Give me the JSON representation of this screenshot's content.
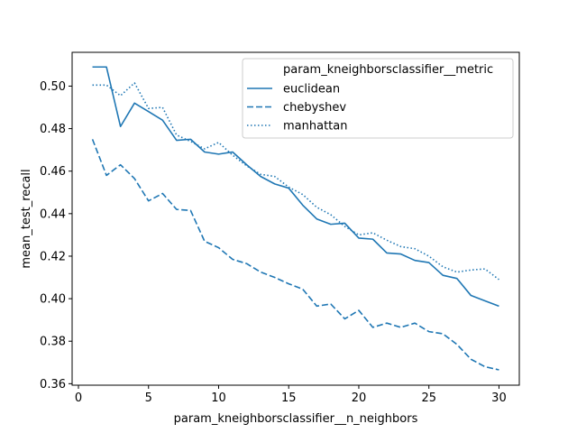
{
  "chart_data": {
    "type": "line",
    "title": "",
    "xlabel": "param_kneighborsclassifier__n_neighbors",
    "ylabel": "mean_test_recall",
    "xlim": [
      -0.45,
      31.45
    ],
    "ylim": [
      0.3593,
      0.5159
    ],
    "xticks": [
      0,
      5,
      10,
      15,
      20,
      25,
      30
    ],
    "yticks": [
      0.36,
      0.38,
      0.4,
      0.42,
      0.44,
      0.46,
      0.48,
      0.5
    ],
    "grid": false,
    "legend": {
      "title": "param_kneighborsclassifier__metric",
      "placement": "top-right"
    },
    "color": "#1f77b4",
    "x": [
      1,
      2,
      3,
      4,
      5,
      6,
      7,
      8,
      9,
      10,
      11,
      12,
      13,
      14,
      15,
      16,
      17,
      18,
      19,
      20,
      21,
      22,
      23,
      24,
      25,
      26,
      27,
      28,
      29,
      30
    ],
    "series": [
      {
        "name": "euclidean",
        "dash": "solid",
        "values": [
          0.509,
          0.509,
          0.481,
          0.492,
          0.488,
          0.484,
          0.4745,
          0.475,
          0.469,
          0.468,
          0.469,
          0.463,
          0.4575,
          0.454,
          0.452,
          0.444,
          0.4375,
          0.435,
          0.4355,
          0.4285,
          0.428,
          0.4215,
          0.421,
          0.418,
          0.417,
          0.411,
          0.4095,
          0.4015,
          0.399,
          0.3965
        ]
      },
      {
        "name": "chebyshev",
        "dash": "dashed",
        "values": [
          0.475,
          0.458,
          0.463,
          0.4565,
          0.446,
          0.4495,
          0.442,
          0.4415,
          0.427,
          0.424,
          0.4185,
          0.4165,
          0.4125,
          0.41,
          0.407,
          0.4045,
          0.3965,
          0.3975,
          0.3905,
          0.3945,
          0.3865,
          0.3885,
          0.3865,
          0.3885,
          0.3845,
          0.3835,
          0.3785,
          0.3715,
          0.368,
          0.3665
        ]
      },
      {
        "name": "manhattan",
        "dash": "dotted",
        "values": [
          0.5005,
          0.5005,
          0.4955,
          0.5015,
          0.4895,
          0.49,
          0.477,
          0.474,
          0.4705,
          0.4735,
          0.4675,
          0.4625,
          0.4585,
          0.4575,
          0.4525,
          0.449,
          0.443,
          0.4395,
          0.434,
          0.43,
          0.431,
          0.4275,
          0.4245,
          0.4235,
          0.42,
          0.415,
          0.4125,
          0.4135,
          0.414,
          0.409
        ]
      }
    ]
  }
}
